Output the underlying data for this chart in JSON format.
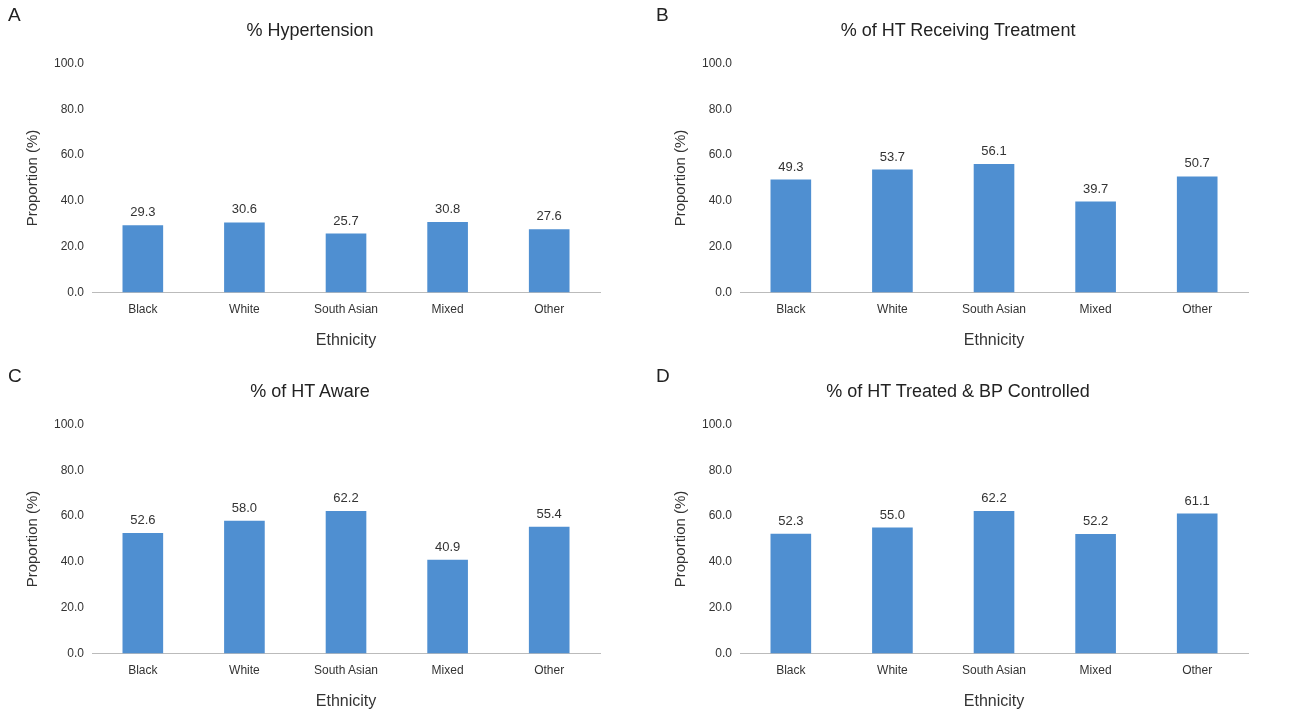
{
  "chart_data": [
    {
      "type": "bar",
      "title": "% Hypertension",
      "xlabel": "Ethnicity",
      "ylabel": "Proportion (%)",
      "annotations": [
        "A"
      ],
      "categories": [
        "Black",
        "White",
        "South Asian",
        "Mixed",
        "Other"
      ],
      "values": [
        29.3,
        30.6,
        25.7,
        30.8,
        27.6
      ],
      "value_labels": [
        "29.3",
        "30.6",
        "25.7",
        "30.8",
        "27.6"
      ],
      "color": "#4f8fd1",
      "ylim": [
        0,
        100
      ],
      "yticks": [
        {
          "value": 0,
          "label": "0.0"
        },
        {
          "value": 20,
          "label": "20.0"
        },
        {
          "value": 40,
          "label": "40.0"
        },
        {
          "value": 60,
          "label": "60.0"
        },
        {
          "value": 80,
          "label": "80.0"
        },
        {
          "value": 100,
          "label": "100.0"
        }
      ],
      "grid": false,
      "legend": false
    },
    {
      "type": "bar",
      "title": "% of HT Receiving Treatment",
      "xlabel": "Ethnicity",
      "ylabel": "Proportion (%)",
      "annotations": [
        "B"
      ],
      "categories": [
        "Black",
        "White",
        "South Asian",
        "Mixed",
        "Other"
      ],
      "values": [
        49.3,
        53.7,
        56.1,
        39.7,
        50.7
      ],
      "value_labels": [
        "49.3",
        "53.7",
        "56.1",
        "39.7",
        "50.7"
      ],
      "color": "#4f8fd1",
      "ylim": [
        0,
        100
      ],
      "yticks": [
        {
          "value": 0,
          "label": "0.0"
        },
        {
          "value": 20,
          "label": "20.0"
        },
        {
          "value": 40,
          "label": "40.0"
        },
        {
          "value": 60,
          "label": "60.0"
        },
        {
          "value": 80,
          "label": "80.0"
        },
        {
          "value": 100,
          "label": "100.0"
        }
      ],
      "grid": false,
      "legend": false
    },
    {
      "type": "bar",
      "title": "% of HT Aware",
      "xlabel": "Ethnicity",
      "ylabel": "Proportion (%)",
      "annotations": [
        "C"
      ],
      "categories": [
        "Black",
        "White",
        "South Asian",
        "Mixed",
        "Other"
      ],
      "values": [
        52.6,
        58.0,
        62.2,
        40.9,
        55.4
      ],
      "value_labels": [
        "52.6",
        "58.0",
        "62.2",
        "40.9",
        "55.4"
      ],
      "color": "#4f8fd1",
      "ylim": [
        0,
        100
      ],
      "yticks": [
        {
          "value": 0,
          "label": "0.0"
        },
        {
          "value": 20,
          "label": "20.0"
        },
        {
          "value": 40,
          "label": "40.0"
        },
        {
          "value": 60,
          "label": "60.0"
        },
        {
          "value": 80,
          "label": "80.0"
        },
        {
          "value": 100,
          "label": "100.0"
        }
      ],
      "grid": false,
      "legend": false
    },
    {
      "type": "bar",
      "title": "% of HT Treated & BP Controlled",
      "xlabel": "Ethnicity",
      "ylabel": "Proportion (%)",
      "annotations": [
        "D"
      ],
      "categories": [
        "Black",
        "White",
        "South Asian",
        "Mixed",
        "Other"
      ],
      "values": [
        52.3,
        55.0,
        62.2,
        52.2,
        61.1
      ],
      "value_labels": [
        "52.3",
        "55.0",
        "62.2",
        "52.2",
        "61.1"
      ],
      "color": "#4f8fd1",
      "ylim": [
        0,
        100
      ],
      "yticks": [
        {
          "value": 0,
          "label": "0.0"
        },
        {
          "value": 20,
          "label": "20.0"
        },
        {
          "value": 40,
          "label": "40.0"
        },
        {
          "value": 60,
          "label": "60.0"
        },
        {
          "value": 80,
          "label": "80.0"
        },
        {
          "value": 100,
          "label": "100.0"
        }
      ],
      "grid": false,
      "legend": false
    }
  ]
}
